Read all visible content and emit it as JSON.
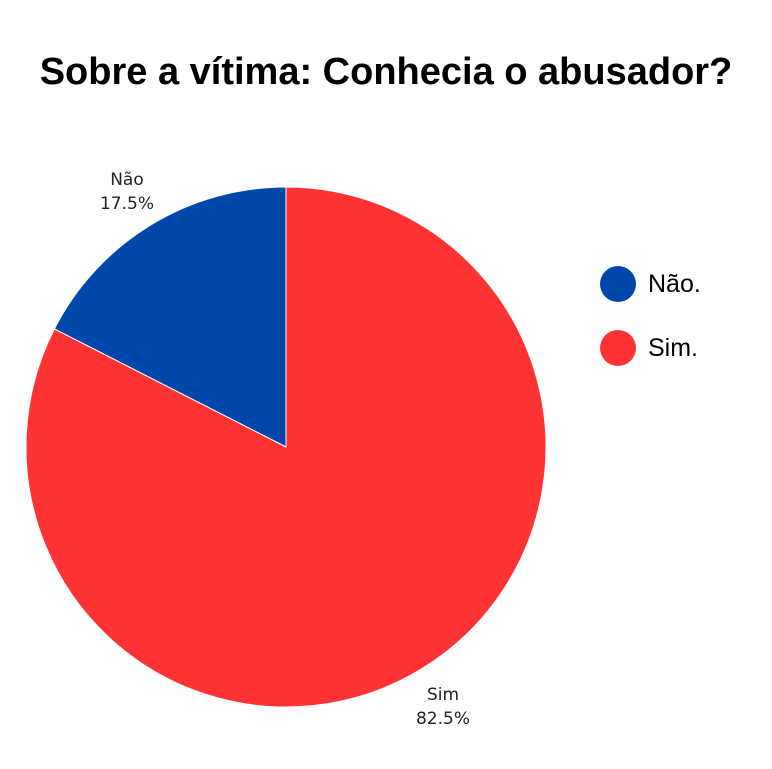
{
  "chart_data": {
    "type": "pie",
    "title": "Sobre a vítima: Conhecia o abusador?",
    "slices": [
      {
        "label": "Não",
        "legend": "Não.",
        "value": 17.5,
        "display": "17.5%",
        "color": "#0047ab"
      },
      {
        "label": "Sim",
        "legend": "Sim.",
        "value": 82.5,
        "display": "82.5%",
        "color": "#ff3333"
      }
    ],
    "start_angle_deg": 0,
    "direction": "counterclockwise",
    "legend_position": "right"
  }
}
